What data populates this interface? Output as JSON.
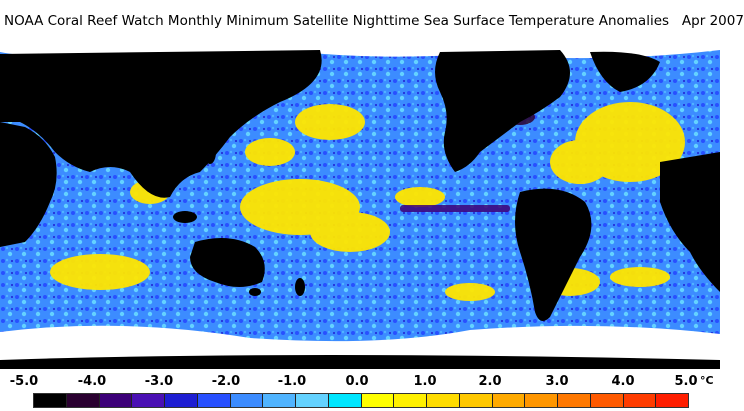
{
  "title": "NOAA Coral Reef Watch Monthly Minimum Satellite Nighttime Sea Surface Temperature Anomalies   Apr 2007",
  "legend": {
    "unit": "°C",
    "ticks": [
      "-5.0",
      "-4.0",
      "-3.0",
      "-2.0",
      "-1.0",
      "0.0",
      "1.0",
      "2.0",
      "3.0",
      "4.0",
      "5.0"
    ],
    "colors": [
      "#000000",
      "#2a0030",
      "#3c0078",
      "#4a10b4",
      "#1e1ed2",
      "#2850ff",
      "#3c8cff",
      "#50b4ff",
      "#64d2ff",
      "#00e6ff",
      "#ffff00",
      "#fff000",
      "#ffdc00",
      "#ffc800",
      "#ffaa00",
      "#ff9600",
      "#ff7800",
      "#ff5a00",
      "#ff3c00",
      "#ff1e00"
    ]
  },
  "map": {
    "ocean_base_color": "#3c8cff",
    "land_color": "#000000",
    "ice_color": "#ffffff",
    "warm_color": "#ffe600",
    "cool_color": "#1e1ed2"
  }
}
